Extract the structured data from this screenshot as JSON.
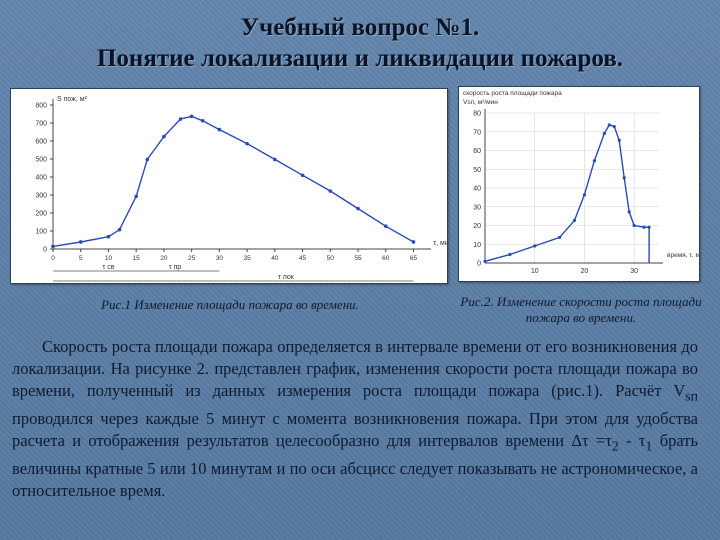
{
  "slide": {
    "title_line1": "Учебный вопрос №1.",
    "title_line2": "Понятие локализации и ликвидации пожаров.",
    "caption1": "Рис.1 Изменение площади пожара во времени.",
    "caption2": "Рис.2. Изменение скорости роста площади пожара во времени.",
    "body_p1": "Скорость роста площади пожара определяется в интервале времени от его возникновения до локализации. На рисунке 2. представлен график, изменения скорости роста площади пожара во времени, полученный из данных измерения роста площади пожара (рис.1). Расчёт V",
    "body_sub1": "sп",
    "body_p2": " проводился через каждые 5 минут с момента возникновения пожара. При этом для удобства расчета и отображения результатов целесообразно для интервалов времени Δτ =τ",
    "body_sub2": "2",
    "body_p3": " - τ",
    "body_sub3": "1",
    "body_p4": " брать величины кратные 5 или 10 минутам и по оси абсцисс следует показывать не астрономическое, а относительное время."
  },
  "chart_data": [
    {
      "type": "line",
      "ylabel": "S пож, м²",
      "xlabel": "τ, мин",
      "y_ticks": [
        "800",
        "700",
        "600",
        "500",
        "400",
        "300",
        "200",
        "100",
        "0"
      ],
      "x_ticks": [
        "0",
        "5",
        "10",
        "15",
        "20",
        "25",
        "30",
        "35",
        "40",
        "45",
        "50",
        "55",
        "60",
        "65"
      ],
      "time_markers": [
        "τ св",
        "τ пр",
        "τ лок"
      ],
      "x": [
        0,
        5,
        10,
        12,
        15,
        17,
        20,
        23,
        25,
        27,
        30,
        35,
        40,
        45,
        50,
        55,
        60,
        65
      ],
      "y": [
        15,
        40,
        70,
        110,
        300,
        510,
        640,
        740,
        755,
        730,
        680,
        600,
        510,
        420,
        330,
        230,
        130,
        40
      ],
      "xlim": [
        0,
        66
      ],
      "ylim": [
        0,
        820
      ]
    },
    {
      "type": "line",
      "title": "скорость роста площади пожара",
      "ylabel": "Vsп, м²/мин",
      "xlabel": "время, τ, мин",
      "y_ticks": [
        "80",
        "70",
        "60",
        "50",
        "40",
        "30",
        "20",
        "10",
        "0"
      ],
      "x_ticks": [
        "10",
        "20",
        "30"
      ],
      "x": [
        0,
        5,
        10,
        15,
        18,
        20,
        22,
        24,
        25,
        26,
        27,
        28,
        29,
        30,
        32,
        33
      ],
      "y": [
        1,
        5,
        10,
        15,
        25,
        40,
        60,
        76,
        81,
        80,
        72,
        50,
        30,
        22,
        21,
        21
      ],
      "xlim": [
        0,
        35
      ],
      "ylim": [
        0,
        88
      ]
    }
  ]
}
